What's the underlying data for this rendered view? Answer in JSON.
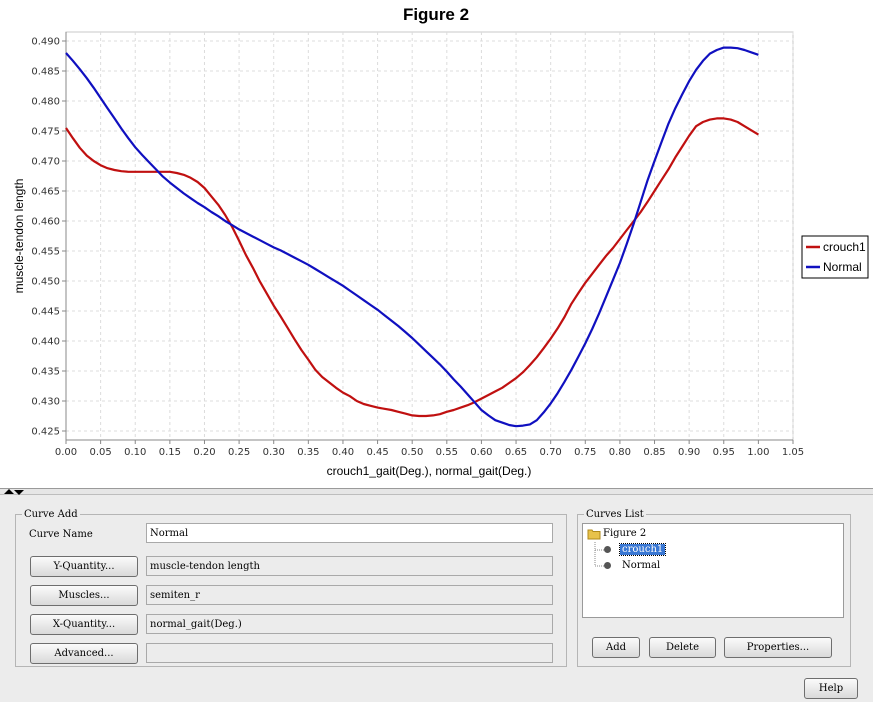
{
  "chart_data": {
    "type": "line",
    "title": "Figure 2",
    "xlabel": "crouch1_gait(Deg.), normal_gait(Deg.)",
    "ylabel": "muscle-tendon length",
    "xlim": [
      0,
      1.05
    ],
    "ylim": [
      0.4235,
      0.4915
    ],
    "x_ticks": [
      "0.00",
      "0.05",
      "0.10",
      "0.15",
      "0.20",
      "0.25",
      "0.30",
      "0.35",
      "0.40",
      "0.45",
      "0.50",
      "0.55",
      "0.60",
      "0.65",
      "0.70",
      "0.75",
      "0.80",
      "0.85",
      "0.90",
      "0.95",
      "1.00",
      "1.05"
    ],
    "y_ticks": [
      "0.425",
      "0.430",
      "0.435",
      "0.440",
      "0.445",
      "0.450",
      "0.455",
      "0.460",
      "0.465",
      "0.470",
      "0.475",
      "0.480",
      "0.485",
      "0.490"
    ],
    "grid": true,
    "legend_position": "right",
    "series": [
      {
        "name": "crouch1",
        "color": "#c01010",
        "x": [
          0,
          0.01,
          0.02,
          0.03,
          0.04,
          0.05,
          0.06,
          0.07,
          0.08,
          0.09,
          0.1,
          0.11,
          0.12,
          0.13,
          0.14,
          0.15,
          0.16,
          0.17,
          0.18,
          0.19,
          0.2,
          0.21,
          0.22,
          0.23,
          0.24,
          0.25,
          0.26,
          0.27,
          0.28,
          0.29,
          0.3,
          0.31,
          0.32,
          0.33,
          0.34,
          0.35,
          0.36,
          0.37,
          0.38,
          0.39,
          0.4,
          0.41,
          0.42,
          0.43,
          0.44,
          0.45,
          0.46,
          0.47,
          0.48,
          0.49,
          0.5,
          0.51,
          0.52,
          0.53,
          0.54,
          0.55,
          0.56,
          0.57,
          0.58,
          0.59,
          0.6,
          0.61,
          0.62,
          0.63,
          0.64,
          0.65,
          0.66,
          0.67,
          0.68,
          0.69,
          0.7,
          0.71,
          0.72,
          0.73,
          0.74,
          0.75,
          0.76,
          0.77,
          0.78,
          0.79,
          0.8,
          0.81,
          0.82,
          0.83,
          0.84,
          0.85,
          0.86,
          0.87,
          0.88,
          0.89,
          0.9,
          0.91,
          0.92,
          0.93,
          0.94,
          0.95,
          0.96,
          0.97,
          0.98,
          0.99,
          1.0
        ],
        "values": [
          0.4755,
          0.4738,
          0.4722,
          0.4709,
          0.47,
          0.4693,
          0.4688,
          0.4685,
          0.4683,
          0.4682,
          0.4682,
          0.4682,
          0.4682,
          0.4682,
          0.4682,
          0.4682,
          0.468,
          0.4677,
          0.4672,
          0.4665,
          0.4655,
          0.4641,
          0.4627,
          0.461,
          0.459,
          0.4567,
          0.4543,
          0.4522,
          0.4499,
          0.4479,
          0.4459,
          0.4441,
          0.4422,
          0.4403,
          0.4385,
          0.4369,
          0.4352,
          0.434,
          0.4331,
          0.4322,
          0.4314,
          0.4308,
          0.43,
          0.4295,
          0.4292,
          0.4289,
          0.4287,
          0.4285,
          0.4282,
          0.4279,
          0.4276,
          0.4275,
          0.4275,
          0.4276,
          0.4278,
          0.4282,
          0.4285,
          0.4289,
          0.4293,
          0.4298,
          0.4304,
          0.431,
          0.4316,
          0.4322,
          0.433,
          0.4338,
          0.4348,
          0.436,
          0.4373,
          0.4388,
          0.4404,
          0.4421,
          0.444,
          0.4462,
          0.448,
          0.4497,
          0.4512,
          0.4527,
          0.4542,
          0.4555,
          0.457,
          0.4585,
          0.46,
          0.4615,
          0.4632,
          0.465,
          0.4668,
          0.4686,
          0.4706,
          0.4724,
          0.4742,
          0.4758,
          0.4765,
          0.4769,
          0.4771,
          0.4771,
          0.4769,
          0.4765,
          0.4758,
          0.4751,
          0.4744
        ]
      },
      {
        "name": "Normal",
        "color": "#1010c0",
        "x": [
          0,
          0.01,
          0.02,
          0.03,
          0.04,
          0.05,
          0.06,
          0.07,
          0.08,
          0.09,
          0.1,
          0.11,
          0.12,
          0.13,
          0.14,
          0.15,
          0.16,
          0.17,
          0.18,
          0.19,
          0.2,
          0.21,
          0.22,
          0.23,
          0.24,
          0.25,
          0.26,
          0.27,
          0.28,
          0.29,
          0.3,
          0.31,
          0.32,
          0.33,
          0.34,
          0.35,
          0.36,
          0.37,
          0.38,
          0.39,
          0.4,
          0.41,
          0.42,
          0.43,
          0.44,
          0.45,
          0.46,
          0.47,
          0.48,
          0.49,
          0.5,
          0.51,
          0.52,
          0.53,
          0.54,
          0.55,
          0.56,
          0.57,
          0.58,
          0.59,
          0.6,
          0.61,
          0.62,
          0.63,
          0.64,
          0.65,
          0.66,
          0.67,
          0.68,
          0.69,
          0.7,
          0.71,
          0.72,
          0.73,
          0.74,
          0.75,
          0.76,
          0.77,
          0.78,
          0.79,
          0.8,
          0.81,
          0.82,
          0.83,
          0.84,
          0.85,
          0.86,
          0.87,
          0.88,
          0.89,
          0.9,
          0.91,
          0.92,
          0.93,
          0.94,
          0.95,
          0.96,
          0.97,
          0.98,
          0.99,
          1.0
        ],
        "values": [
          0.488,
          0.4867,
          0.4853,
          0.4838,
          0.4822,
          0.4805,
          0.4788,
          0.4771,
          0.4754,
          0.4738,
          0.4723,
          0.471,
          0.4698,
          0.4686,
          0.4674,
          0.4664,
          0.4655,
          0.4646,
          0.4638,
          0.463,
          0.4623,
          0.4615,
          0.4608,
          0.46,
          0.4593,
          0.4586,
          0.458,
          0.4574,
          0.4568,
          0.4562,
          0.4556,
          0.4551,
          0.4545,
          0.4539,
          0.4533,
          0.4527,
          0.452,
          0.4513,
          0.4506,
          0.4499,
          0.4492,
          0.4484,
          0.4476,
          0.4468,
          0.446,
          0.4452,
          0.4443,
          0.4434,
          0.4425,
          0.4415,
          0.4405,
          0.4394,
          0.4383,
          0.4372,
          0.4361,
          0.4349,
          0.4336,
          0.4324,
          0.4311,
          0.4298,
          0.4285,
          0.4276,
          0.4268,
          0.4264,
          0.426,
          0.4258,
          0.4259,
          0.4261,
          0.4268,
          0.4281,
          0.4296,
          0.4313,
          0.4332,
          0.4352,
          0.4374,
          0.4396,
          0.442,
          0.4446,
          0.4474,
          0.4502,
          0.453,
          0.4562,
          0.4596,
          0.4632,
          0.4668,
          0.47,
          0.4731,
          0.4762,
          0.4788,
          0.4811,
          0.4833,
          0.4852,
          0.4867,
          0.4879,
          0.4885,
          0.4889,
          0.4889,
          0.4888,
          0.4885,
          0.4881,
          0.4877
        ]
      }
    ]
  },
  "curve_add": {
    "legend": "Curve Add",
    "curve_name_label": "Curve Name",
    "curve_name_value": "Normal",
    "y_quantity_button": "Y-Quantity...",
    "y_quantity_value": "muscle-tendon length",
    "muscles_button": "Muscles...",
    "muscles_value": "semiten_r",
    "x_quantity_button": "X-Quantity...",
    "x_quantity_value": "normal_gait(Deg.)",
    "advanced_button": "Advanced...",
    "advanced_value": ""
  },
  "curves_list": {
    "legend": "Curves List",
    "root": "Figure 2",
    "items": [
      "crouch1",
      "Normal"
    ],
    "selected_index": 0,
    "selected_color": "#3a78d4",
    "add_button": "Add",
    "delete_button": "Delete",
    "properties_button": "Properties..."
  },
  "help_button": "Help"
}
